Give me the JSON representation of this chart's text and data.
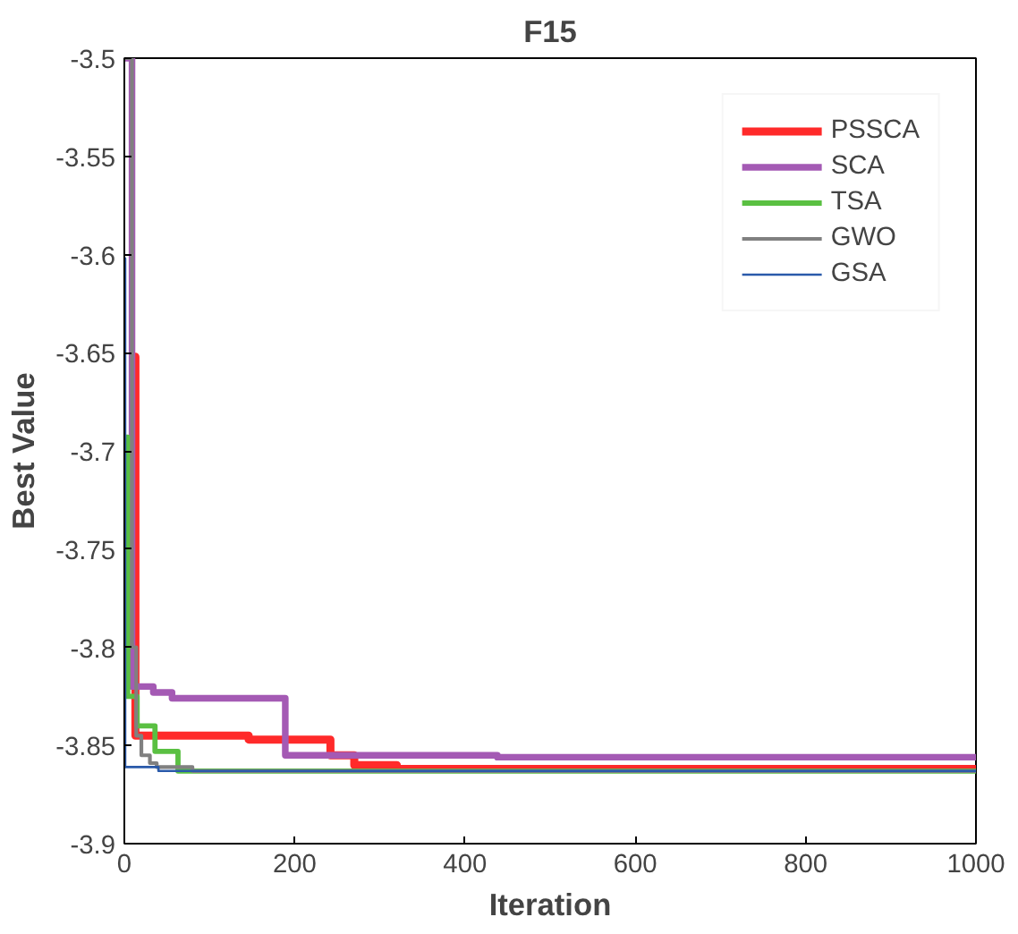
{
  "chart_data": {
    "type": "step",
    "title": "F15",
    "xlabel": "Iteration",
    "ylabel": "Best Value",
    "xlim": [
      0,
      1000
    ],
    "ylim": [
      -3.9,
      -3.5
    ],
    "xticks": [
      0,
      200,
      400,
      600,
      800,
      1000
    ],
    "yticks": [
      -3.9,
      -3.85,
      -3.8,
      -3.75,
      -3.7,
      -3.65,
      -3.6,
      -3.55,
      -3.5
    ],
    "grid": false,
    "legend": "top right",
    "series": [
      {
        "name": "PSSCA",
        "color": "#ff2a2a",
        "x": [
          7,
          13,
          146,
          242,
          270,
          320,
          1000
        ],
        "values": [
          -3.652,
          -3.845,
          -3.847,
          -3.855,
          -3.86,
          -3.862,
          -3.863
        ]
      },
      {
        "name": "SCA",
        "color": "#a45ab4",
        "x": [
          1,
          9,
          34,
          56,
          189,
          438,
          1000
        ],
        "values": [
          -3.5,
          -3.82,
          -3.823,
          -3.826,
          -3.855,
          -3.856,
          -3.856
        ]
      },
      {
        "name": "TSA",
        "color": "#5ac042",
        "x": [
          1,
          4,
          15,
          36,
          63,
          1000
        ],
        "values": [
          -3.693,
          -3.825,
          -3.84,
          -3.853,
          -3.863,
          -3.863
        ]
      },
      {
        "name": "GWO",
        "color": "#808080",
        "x": [
          1,
          9,
          14,
          20,
          30,
          38,
          80,
          1000
        ],
        "values": [
          -3.5,
          -3.8,
          -3.845,
          -3.855,
          -3.859,
          -3.861,
          -3.863,
          -3.863
        ]
      },
      {
        "name": "GSA",
        "color": "#2a5aaa",
        "x": [
          0,
          1,
          40,
          1000
        ],
        "values": [
          -3.602,
          -3.861,
          -3.863,
          -3.863
        ]
      }
    ]
  }
}
